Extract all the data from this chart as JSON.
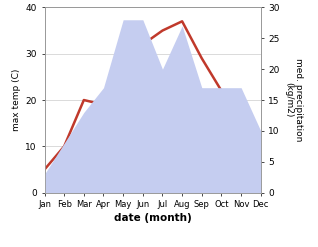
{
  "months": [
    "Jan",
    "Feb",
    "Mar",
    "Apr",
    "May",
    "Jun",
    "Jul",
    "Aug",
    "Sep",
    "Oct",
    "Nov",
    "Dec"
  ],
  "temperature": [
    5,
    10,
    20,
    19,
    25,
    32,
    35,
    37,
    29,
    22,
    14,
    10
  ],
  "precipitation": [
    3,
    8,
    13,
    17,
    28,
    28,
    20,
    27,
    17,
    17,
    17,
    10
  ],
  "temp_color": "#c0392b",
  "precip_fill_color": "#c5cdf0",
  "xlabel": "date (month)",
  "ylabel_left": "max temp (C)",
  "ylabel_right": "med. precipitation\n(kg/m2)",
  "ylim_left": [
    0,
    40
  ],
  "ylim_right": [
    0,
    30
  ],
  "yticks_left": [
    0,
    10,
    20,
    30,
    40
  ],
  "yticks_right": [
    0,
    5,
    10,
    15,
    20,
    25,
    30
  ]
}
